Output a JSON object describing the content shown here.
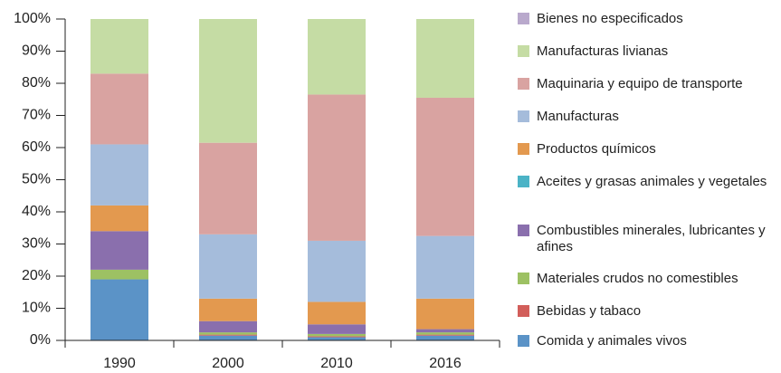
{
  "chart_data": {
    "type": "stacked_bar",
    "categories": [
      "1990",
      "2000",
      "2010",
      "2016"
    ],
    "series": [
      {
        "name": "Comida y animales vivos",
        "color": "#5b93c7",
        "values": [
          19,
          1.5,
          1,
          1.5
        ]
      },
      {
        "name": "Bebidas y tabaco",
        "color": "#d25e5a",
        "values": [
          0,
          0.3,
          0.3,
          0.3
        ]
      },
      {
        "name": "Materiales crudos no comestibles",
        "color": "#9dc163",
        "values": [
          3,
          0.7,
          0.7,
          0.7
        ]
      },
      {
        "name": "Combustibles minerales, lubricantes y afines",
        "color": "#8a6fad",
        "values": [
          12,
          3.5,
          3,
          1
        ]
      },
      {
        "name": "Aceites y grasas animales y vegetales",
        "color": "#4bb3c6",
        "values": [
          0,
          0,
          0,
          0
        ]
      },
      {
        "name": "Productos químicos",
        "color": "#e3994f",
        "values": [
          8,
          7,
          7,
          9.5
        ]
      },
      {
        "name": "Manufacturas",
        "color": "#a5bcdb",
        "values": [
          19,
          20,
          19,
          19.5
        ]
      },
      {
        "name": "Maquinaria y equipo de transporte",
        "color": "#d9a3a1",
        "values": [
          22,
          28.5,
          45.5,
          43
        ]
      },
      {
        "name": "Manufacturas livianas",
        "color": "#c5dca4",
        "values": [
          17,
          38.5,
          23.5,
          24.5
        ]
      },
      {
        "name": "Bienes no especificados",
        "color": "#b9a9cc",
        "values": [
          0,
          0,
          0,
          0
        ]
      }
    ],
    "ylim": [
      0,
      100
    ],
    "yticks": [
      {
        "value": 0,
        "label": "0%"
      },
      {
        "value": 10,
        "label": "10%"
      },
      {
        "value": 20,
        "label": "20%"
      },
      {
        "value": 30,
        "label": "30%"
      },
      {
        "value": 40,
        "label": "40%"
      },
      {
        "value": 50,
        "label": "50%"
      },
      {
        "value": 60,
        "label": "60%"
      },
      {
        "value": 70,
        "label": "70%"
      },
      {
        "value": 80,
        "label": "80%"
      },
      {
        "value": 90,
        "label": "90%"
      },
      {
        "value": 100,
        "label": "100%"
      }
    ],
    "legend": "right"
  }
}
